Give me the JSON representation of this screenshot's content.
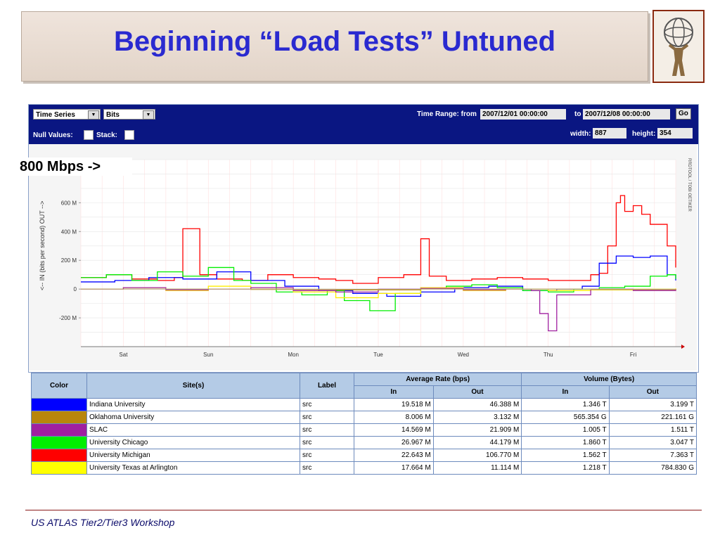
{
  "slide": {
    "title": "Beginning “Load Tests” Untuned",
    "annotation": "800 Mbps ->",
    "footer": "US ATLAS Tier2/Tier3 Workshop"
  },
  "controls": {
    "graph_type": "Time Series",
    "units": "Bits",
    "time_range_label": "Time Range: from",
    "from": "2007/12/01 00:00:00",
    "to_label": "to",
    "to": "2007/12/08 00:00:00",
    "go": "Go",
    "null_values_label": "Null Values:",
    "stack_label": "Stack:",
    "width_label": "width:",
    "width": "887",
    "height_label": "height:",
    "height": "354"
  },
  "chart_data": {
    "type": "line",
    "ylabel": "<-- IN  (bits per second)  OUT -->",
    "right_label": "RRDTOOL / TOBI OETIKER",
    "y_ticks": [
      "600 M",
      "400 M",
      "200 M",
      "0",
      "-200 M"
    ],
    "y_tick_values": [
      600,
      400,
      200,
      0,
      -200
    ],
    "x_ticks": [
      "Sat",
      "Sun",
      "Mon",
      "Tue",
      "Wed",
      "Thu",
      "Fri"
    ],
    "ylim": [
      -400,
      900
    ],
    "x_unit": "days from 2007/12/01",
    "xlim": [
      0,
      7
    ],
    "grid": true,
    "series": [
      {
        "color": "#ff0000",
        "x": [
          0,
          0.3,
          0.6,
          0.9,
          1.1,
          1.2,
          1.4,
          1.6,
          1.9,
          2.2,
          2.5,
          2.8,
          3.0,
          3.2,
          3.5,
          3.8,
          4.0,
          4.1,
          4.3,
          4.6,
          4.9,
          5.2,
          5.5,
          5.8,
          6.0,
          6.1,
          6.2,
          6.3,
          6.35,
          6.4,
          6.5,
          6.6,
          6.7,
          6.9,
          7.0
        ],
        "values": [
          80,
          100,
          70,
          60,
          80,
          420,
          100,
          70,
          60,
          100,
          80,
          70,
          60,
          40,
          80,
          100,
          350,
          90,
          60,
          70,
          80,
          70,
          60,
          60,
          100,
          110,
          300,
          600,
          650,
          540,
          580,
          520,
          450,
          300,
          150
        ]
      },
      {
        "color": "#0000ff",
        "x": [
          0,
          0.4,
          0.8,
          1.2,
          1.6,
          2.0,
          2.4,
          2.8,
          3.2,
          3.6,
          4.0,
          4.4,
          4.8,
          5.2,
          5.6,
          5.9,
          6.1,
          6.3,
          6.5,
          6.7,
          6.9,
          7.0
        ],
        "values": [
          50,
          60,
          80,
          70,
          120,
          60,
          20,
          -10,
          -30,
          -50,
          -20,
          10,
          20,
          -10,
          0,
          20,
          180,
          230,
          220,
          230,
          100,
          60
        ]
      },
      {
        "color": "#00ee00",
        "x": [
          0,
          0.3,
          0.6,
          0.9,
          1.2,
          1.5,
          1.8,
          2.0,
          2.3,
          2.6,
          2.9,
          3.1,
          3.4,
          3.7,
          4.0,
          4.3,
          4.6,
          4.9,
          5.2,
          5.5,
          5.8,
          6.1,
          6.4,
          6.7,
          6.9,
          7.0
        ],
        "values": [
          80,
          100,
          60,
          120,
          90,
          150,
          60,
          40,
          -20,
          -40,
          -10,
          -80,
          -150,
          -30,
          10,
          20,
          30,
          10,
          -10,
          -20,
          0,
          10,
          20,
          90,
          100,
          70
        ]
      },
      {
        "color": "#ffee00",
        "x": [
          0,
          0.5,
          1.0,
          1.5,
          2.0,
          2.5,
          3.0,
          3.5,
          4.0,
          4.5,
          5.0,
          5.5,
          6.0,
          6.5,
          7.0
        ],
        "values": [
          0,
          10,
          -10,
          20,
          0,
          -20,
          -60,
          -30,
          10,
          -10,
          0,
          -10,
          -5,
          0,
          5
        ]
      },
      {
        "color": "#a020a0",
        "x": [
          0,
          0.5,
          1.0,
          1.5,
          2.0,
          2.5,
          3.0,
          3.5,
          4.0,
          4.5,
          5.0,
          5.3,
          5.4,
          5.5,
          5.6,
          6.0,
          6.5,
          7.0
        ],
        "values": [
          0,
          10,
          -5,
          0,
          10,
          -10,
          -20,
          0,
          5,
          -5,
          0,
          -10,
          -170,
          -290,
          -40,
          0,
          -10,
          0
        ]
      },
      {
        "color": "#b8860b",
        "x": [
          0,
          1,
          2,
          3,
          4,
          5,
          6,
          7
        ],
        "values": [
          0,
          0,
          -2,
          -5,
          0,
          0,
          -3,
          0
        ]
      }
    ]
  },
  "table": {
    "headers": {
      "color": "Color",
      "sites": "Site(s)",
      "label": "Label",
      "avg_rate": "Average Rate (bps)",
      "volume": "Volume (Bytes)",
      "in": "In",
      "out": "Out"
    },
    "rows": [
      {
        "color": "#0000ff",
        "site": "Indiana University",
        "label": "src",
        "avg_in": "19.518 M",
        "avg_out": "46.388 M",
        "vol_in": "1.346 T",
        "vol_out": "3.199 T"
      },
      {
        "color": "#b8860b",
        "site": "Oklahoma University",
        "label": "src",
        "avg_in": "8.006 M",
        "avg_out": "3.132 M",
        "vol_in": "565.354 G",
        "vol_out": "221.161 G"
      },
      {
        "color": "#a020a0",
        "site": "SLAC",
        "label": "src",
        "avg_in": "14.569 M",
        "avg_out": "21.909 M",
        "vol_in": "1.005 T",
        "vol_out": "1.511 T"
      },
      {
        "color": "#00ee00",
        "site": "University Chicago",
        "label": "src",
        "avg_in": "26.967 M",
        "avg_out": "44.179 M",
        "vol_in": "1.860 T",
        "vol_out": "3.047 T"
      },
      {
        "color": "#ff0000",
        "site": "University Michigan",
        "label": "src",
        "avg_in": "22.643 M",
        "avg_out": "106.770 M",
        "vol_in": "1.562 T",
        "vol_out": "7.363 T"
      },
      {
        "color": "#ffff00",
        "site": "University Texas at Arlington",
        "label": "src",
        "avg_in": "17.664 M",
        "avg_out": "11.114 M",
        "vol_in": "1.218 T",
        "vol_out": "784.830 G"
      }
    ]
  }
}
